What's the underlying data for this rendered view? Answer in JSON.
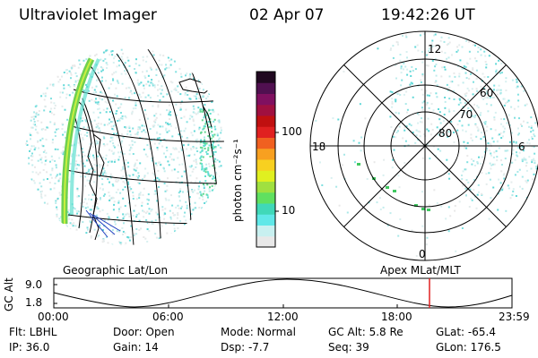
{
  "header": {
    "title": "Ultraviolet Imager",
    "date": "02 Apr 07",
    "time": "19:42:26 UT"
  },
  "colorbar": {
    "unit_label": "photon cm⁻²s⁻¹",
    "tick_100": "100",
    "tick_10": "10",
    "colors": [
      "#e8e8e8",
      "#c8f0f0",
      "#60e8e8",
      "#40d8b8",
      "#60e060",
      "#a0e040",
      "#e0f020",
      "#f8d020",
      "#f8a020",
      "#f06020",
      "#e02020",
      "#c01010",
      "#a01040",
      "#801060",
      "#501050",
      "#200820"
    ]
  },
  "polar_plot": {
    "labels": {
      "top": "12",
      "left": "18",
      "right": "6",
      "bottom": "0"
    },
    "latitudes": [
      "60",
      "70",
      "80"
    ]
  },
  "map_labels": {
    "left": "Geographic Lat/Lon",
    "right": "Apex  MLat/MLT"
  },
  "altitude_plot": {
    "ylabel": "GC Alt",
    "y_ticks": [
      "9.0",
      "1.8"
    ],
    "x_ticks": [
      "00:00",
      "06:00",
      "12:00",
      "18:00",
      "23:59"
    ],
    "marker_color": "#e02020"
  },
  "info": {
    "flt": "Flt: LBHL",
    "ip": "IP: 36.0",
    "door": "Door: Open",
    "gain": "Gain: 14",
    "mode": "Mode: Normal",
    "dsp": "Dsp:   -7.7",
    "gc_alt": "GC Alt: 5.8 Re",
    "seq": "Seq: 39",
    "glat": "GLat: -65.4",
    "glon": "GLon: 176.5"
  }
}
